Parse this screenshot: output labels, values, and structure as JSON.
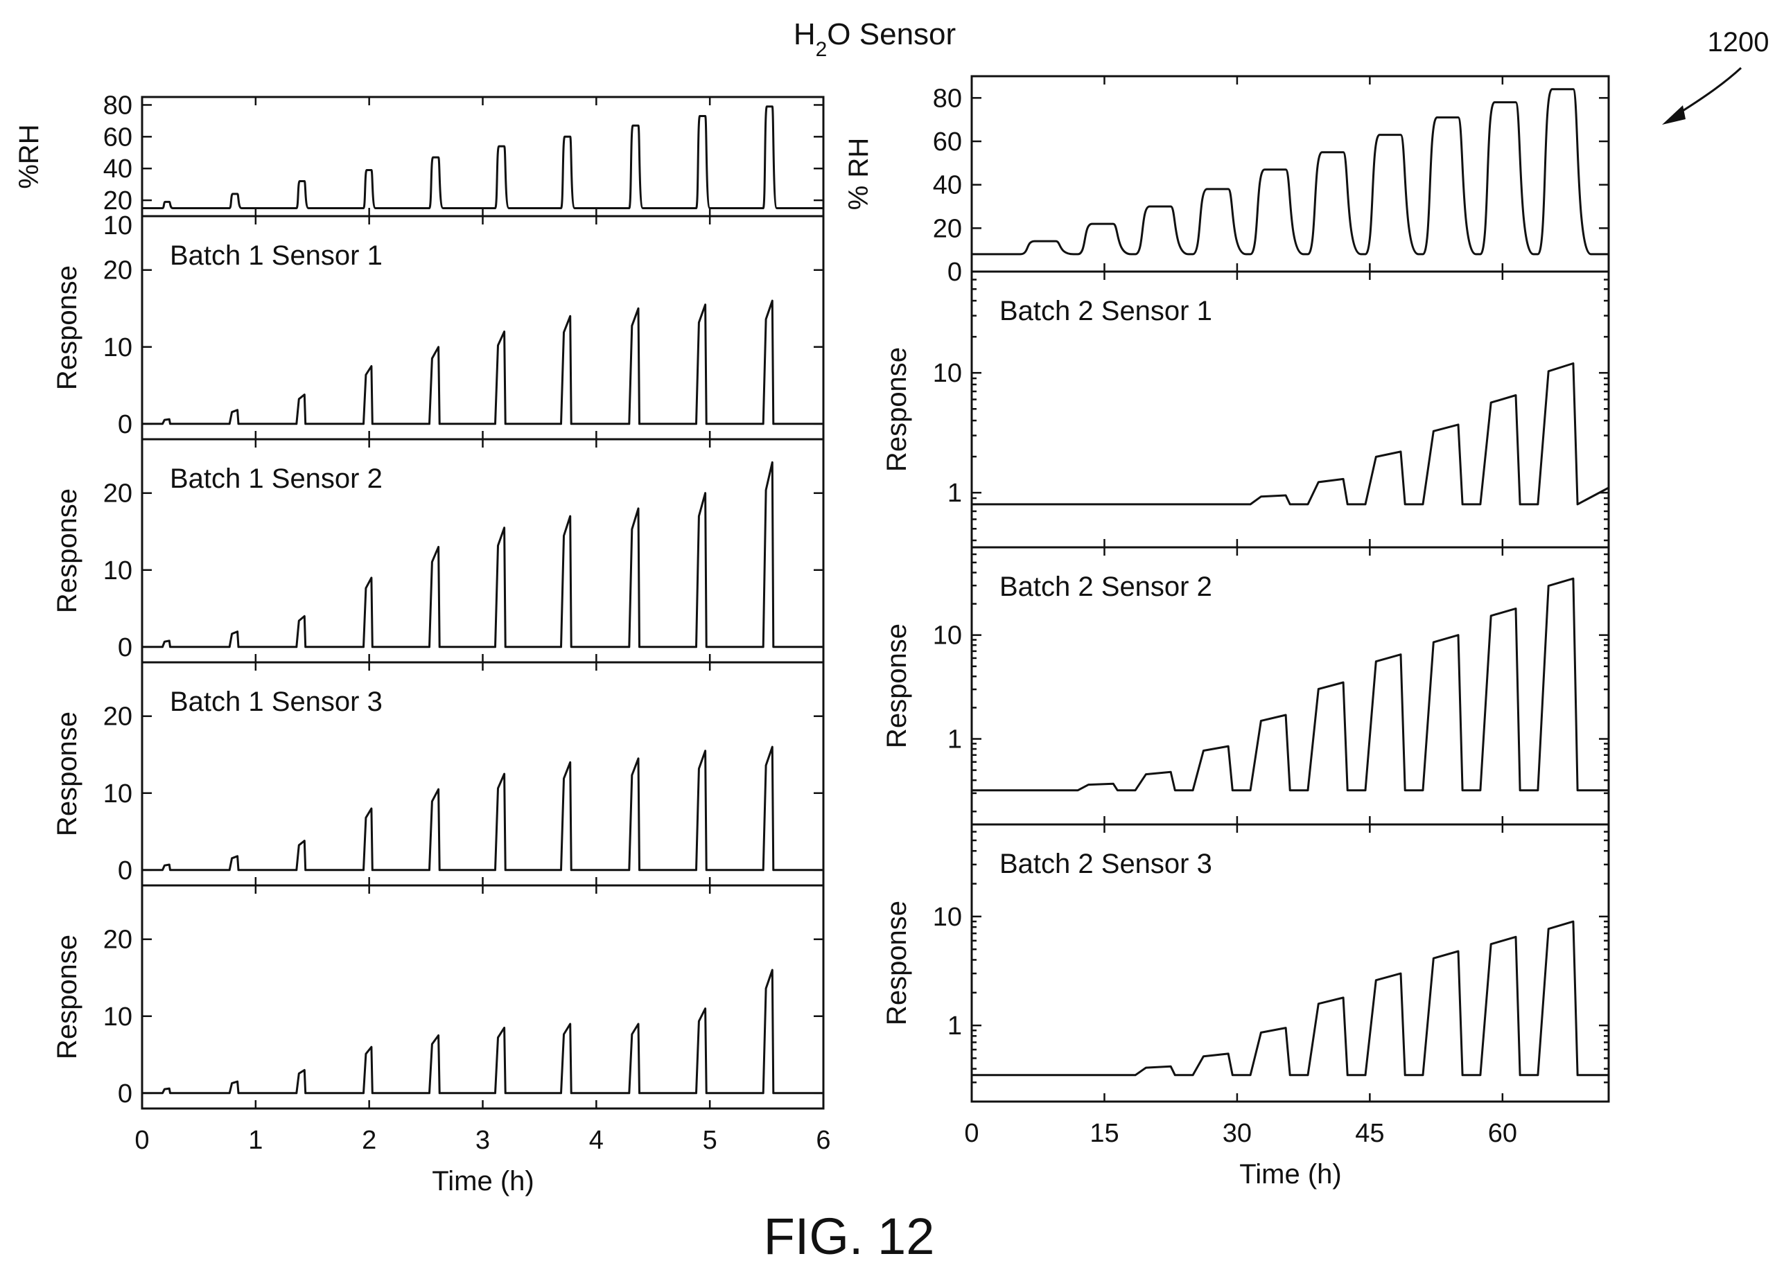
{
  "figure": {
    "title": "H2O Sensor",
    "caption": "FIG. 12",
    "reference_numeral": "1200"
  },
  "chart_data": [
    {
      "id": "left-rh",
      "type": "line",
      "ylabel": "%RH",
      "ylim": [
        10,
        85
      ],
      "yticks": [
        20,
        40,
        60,
        80
      ],
      "xlim": [
        0,
        6
      ],
      "scale": "linear",
      "series": [
        {
          "baseline": 15,
          "pulses": [
            {
              "start": 0.18,
              "end": 0.24,
              "peak": 19
            },
            {
              "start": 0.77,
              "end": 0.84,
              "peak": 24
            },
            {
              "start": 1.36,
              "end": 1.43,
              "peak": 32
            },
            {
              "start": 1.95,
              "end": 2.02,
              "peak": 39
            },
            {
              "start": 2.53,
              "end": 2.61,
              "peak": 47
            },
            {
              "start": 3.11,
              "end": 3.19,
              "peak": 54
            },
            {
              "start": 3.69,
              "end": 3.77,
              "peak": 60
            },
            {
              "start": 4.29,
              "end": 4.37,
              "peak": 67
            },
            {
              "start": 4.88,
              "end": 4.96,
              "peak": 73
            },
            {
              "start": 5.47,
              "end": 5.55,
              "peak": 79
            }
          ]
        }
      ]
    },
    {
      "id": "left-b1s1",
      "type": "line",
      "label": "Batch 1 Sensor 1",
      "ylabel": "Response",
      "ylim": [
        -2,
        27
      ],
      "yticks": [
        0,
        10,
        20
      ],
      "extra_ytick_labels": [
        10
      ],
      "xlim": [
        0,
        6
      ],
      "scale": "linear",
      "series": [
        {
          "baseline": 0,
          "pulses": [
            {
              "start": 0.18,
              "end": 0.24,
              "peak": 0.6
            },
            {
              "start": 0.77,
              "end": 0.84,
              "peak": 1.8
            },
            {
              "start": 1.36,
              "end": 1.43,
              "peak": 3.8
            },
            {
              "start": 1.95,
              "end": 2.02,
              "peak": 7.5
            },
            {
              "start": 2.53,
              "end": 2.61,
              "peak": 10
            },
            {
              "start": 3.11,
              "end": 3.19,
              "peak": 12
            },
            {
              "start": 3.69,
              "end": 3.77,
              "peak": 14
            },
            {
              "start": 4.29,
              "end": 4.37,
              "peak": 15
            },
            {
              "start": 4.88,
              "end": 4.96,
              "peak": 15.5
            },
            {
              "start": 5.47,
              "end": 5.55,
              "peak": 16
            }
          ]
        }
      ]
    },
    {
      "id": "left-b1s2",
      "type": "line",
      "label": "Batch 1 Sensor 2",
      "ylabel": "Response",
      "ylim": [
        -2,
        27
      ],
      "yticks": [
        0,
        10,
        20
      ],
      "xlim": [
        0,
        6
      ],
      "scale": "linear",
      "series": [
        {
          "baseline": 0,
          "pulses": [
            {
              "start": 0.18,
              "end": 0.24,
              "peak": 0.8
            },
            {
              "start": 0.77,
              "end": 0.84,
              "peak": 2
            },
            {
              "start": 1.36,
              "end": 1.43,
              "peak": 4
            },
            {
              "start": 1.95,
              "end": 2.02,
              "peak": 9
            },
            {
              "start": 2.53,
              "end": 2.61,
              "peak": 13
            },
            {
              "start": 3.11,
              "end": 3.19,
              "peak": 15.5
            },
            {
              "start": 3.69,
              "end": 3.77,
              "peak": 17
            },
            {
              "start": 4.29,
              "end": 4.37,
              "peak": 18
            },
            {
              "start": 4.88,
              "end": 4.96,
              "peak": 20
            },
            {
              "start": 5.47,
              "end": 5.55,
              "peak": 24
            }
          ]
        }
      ]
    },
    {
      "id": "left-b1s3",
      "type": "line",
      "label": "Batch 1 Sensor 3",
      "ylabel": "Response",
      "ylim": [
        -2,
        27
      ],
      "yticks": [
        0,
        10,
        20
      ],
      "xlim": [
        0,
        6
      ],
      "scale": "linear",
      "series": [
        {
          "baseline": 0,
          "pulses": [
            {
              "start": 0.18,
              "end": 0.24,
              "peak": 0.7
            },
            {
              "start": 0.77,
              "end": 0.84,
              "peak": 1.8
            },
            {
              "start": 1.36,
              "end": 1.43,
              "peak": 3.8
            },
            {
              "start": 1.95,
              "end": 2.02,
              "peak": 8
            },
            {
              "start": 2.53,
              "end": 2.61,
              "peak": 10.5
            },
            {
              "start": 3.11,
              "end": 3.19,
              "peak": 12.5
            },
            {
              "start": 3.69,
              "end": 3.77,
              "peak": 14
            },
            {
              "start": 4.29,
              "end": 4.37,
              "peak": 14.5
            },
            {
              "start": 4.88,
              "end": 4.96,
              "peak": 15.5
            },
            {
              "start": 5.47,
              "end": 5.55,
              "peak": 16
            }
          ]
        }
      ]
    },
    {
      "id": "left-s4",
      "type": "line",
      "ylabel": "Response",
      "ylim": [
        -2,
        27
      ],
      "yticks": [
        0,
        10,
        20
      ],
      "xlim": [
        0,
        6
      ],
      "xticks": [
        0,
        1,
        2,
        3,
        4,
        5,
        6
      ],
      "xlabel": "Time (h)",
      "scale": "linear",
      "series": [
        {
          "baseline": 0,
          "pulses": [
            {
              "start": 0.18,
              "end": 0.24,
              "peak": 0.6
            },
            {
              "start": 0.77,
              "end": 0.84,
              "peak": 1.5
            },
            {
              "start": 1.36,
              "end": 1.43,
              "peak": 3
            },
            {
              "start": 1.95,
              "end": 2.02,
              "peak": 6
            },
            {
              "start": 2.53,
              "end": 2.61,
              "peak": 7.5
            },
            {
              "start": 3.11,
              "end": 3.19,
              "peak": 8.5
            },
            {
              "start": 3.69,
              "end": 3.77,
              "peak": 9
            },
            {
              "start": 4.29,
              "end": 4.37,
              "peak": 9
            },
            {
              "start": 4.88,
              "end": 4.96,
              "peak": 11
            },
            {
              "start": 5.47,
              "end": 5.55,
              "peak": 16
            }
          ]
        }
      ]
    },
    {
      "id": "right-rh",
      "type": "line",
      "ylabel": "% RH",
      "ylim": [
        0,
        90
      ],
      "yticks": [
        0,
        20,
        40,
        60,
        80
      ],
      "xlim": [
        0,
        72
      ],
      "scale": "linear",
      "series": [
        {
          "baseline": 8,
          "pulses": [
            {
              "start": 5.5,
              "end": 9.5,
              "peak": 14
            },
            {
              "start": 12,
              "end": 16,
              "peak": 22
            },
            {
              "start": 18.5,
              "end": 22.5,
              "peak": 30
            },
            {
              "start": 25,
              "end": 29,
              "peak": 38
            },
            {
              "start": 31.5,
              "end": 35.5,
              "peak": 47
            },
            {
              "start": 38,
              "end": 42,
              "peak": 55
            },
            {
              "start": 44.5,
              "end": 48.5,
              "peak": 63
            },
            {
              "start": 51,
              "end": 55,
              "peak": 71
            },
            {
              "start": 57.5,
              "end": 61.5,
              "peak": 78
            },
            {
              "start": 64,
              "end": 68,
              "peak": 84
            }
          ]
        }
      ]
    },
    {
      "id": "right-b2s1",
      "type": "line",
      "label": "Batch 2 Sensor 1",
      "ylabel": "Response",
      "ylim": [
        0.35,
        70
      ],
      "yticks": [
        1,
        10
      ],
      "xlim": [
        0,
        72
      ],
      "scale": "log",
      "series": [
        {
          "baseline": 0.8,
          "tail": 1.1,
          "pulses": [
            {
              "start": 31.5,
              "end": 35.5,
              "peak": 0.95
            },
            {
              "start": 38,
              "end": 42,
              "peak": 1.3
            },
            {
              "start": 44.5,
              "end": 48.5,
              "peak": 2.2
            },
            {
              "start": 51,
              "end": 55,
              "peak": 3.7
            },
            {
              "start": 57.5,
              "end": 61.5,
              "peak": 6.5
            },
            {
              "start": 64,
              "end": 68,
              "peak": 12
            }
          ]
        }
      ]
    },
    {
      "id": "right-b2s2",
      "type": "line",
      "label": "Batch 2 Sensor 2",
      "ylabel": "Response",
      "ylim": [
        0.15,
        70
      ],
      "yticks": [
        1,
        10
      ],
      "xlim": [
        0,
        72
      ],
      "scale": "log",
      "series": [
        {
          "baseline": 0.32,
          "pulses": [
            {
              "start": 12,
              "end": 16,
              "peak": 0.37
            },
            {
              "start": 18.5,
              "end": 22.5,
              "peak": 0.48
            },
            {
              "start": 25,
              "end": 29,
              "peak": 0.85
            },
            {
              "start": 31.5,
              "end": 35.5,
              "peak": 1.7
            },
            {
              "start": 38,
              "end": 42,
              "peak": 3.5
            },
            {
              "start": 44.5,
              "end": 48.5,
              "peak": 6.5
            },
            {
              "start": 51,
              "end": 55,
              "peak": 10
            },
            {
              "start": 57.5,
              "end": 61.5,
              "peak": 18
            },
            {
              "start": 64,
              "end": 68,
              "peak": 35
            }
          ]
        }
      ]
    },
    {
      "id": "right-b2s3",
      "type": "line",
      "label": "Batch 2 Sensor 3",
      "ylabel": "Response",
      "ylim": [
        0.2,
        70
      ],
      "yticks": [
        1,
        10
      ],
      "xlim": [
        0,
        72
      ],
      "xticks": [
        0,
        15,
        30,
        45,
        60
      ],
      "xlabel": "Time (h)",
      "scale": "log",
      "series": [
        {
          "baseline": 0.35,
          "pulses": [
            {
              "start": 18.5,
              "end": 22.5,
              "peak": 0.42
            },
            {
              "start": 25,
              "end": 29,
              "peak": 0.55
            },
            {
              "start": 31.5,
              "end": 35.5,
              "peak": 0.95
            },
            {
              "start": 38,
              "end": 42,
              "peak": 1.8
            },
            {
              "start": 44.5,
              "end": 48.5,
              "peak": 3
            },
            {
              "start": 51,
              "end": 55,
              "peak": 4.8
            },
            {
              "start": 57.5,
              "end": 61.5,
              "peak": 6.5
            },
            {
              "start": 64,
              "end": 68,
              "peak": 9
            }
          ]
        }
      ]
    }
  ]
}
